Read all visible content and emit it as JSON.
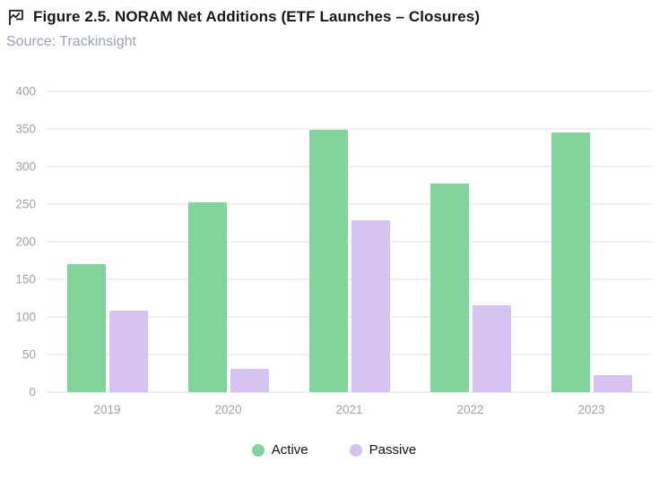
{
  "header": {
    "title": "Figure 2.5. NORAM Net Additions (ETF Launches – Closures)",
    "source": "Source: Trackinsight",
    "icon": "flag-chart-icon"
  },
  "chart_data": {
    "type": "bar",
    "title": "NORAM Net Additions (ETF Launches – Closures)",
    "categories": [
      "2019",
      "2020",
      "2021",
      "2022",
      "2023"
    ],
    "series": [
      {
        "name": "Active",
        "color": "#83d39d",
        "values": [
          170,
          252,
          349,
          277,
          345
        ]
      },
      {
        "name": "Passive",
        "color": "#d6c3f2",
        "values": [
          108,
          31,
          228,
          115,
          23
        ]
      }
    ],
    "xlabel": "",
    "ylabel": "",
    "ylim": [
      0,
      400
    ],
    "yticks": [
      0,
      50,
      100,
      150,
      200,
      250,
      300,
      350,
      400
    ],
    "grid": true,
    "legend_position": "bottom"
  },
  "colors": {
    "active": "#83d39d",
    "passive": "#d6c3f2",
    "gridline": "#f0f0f1",
    "axis_text": "#9ba3ae",
    "title_text": "#16181d"
  }
}
